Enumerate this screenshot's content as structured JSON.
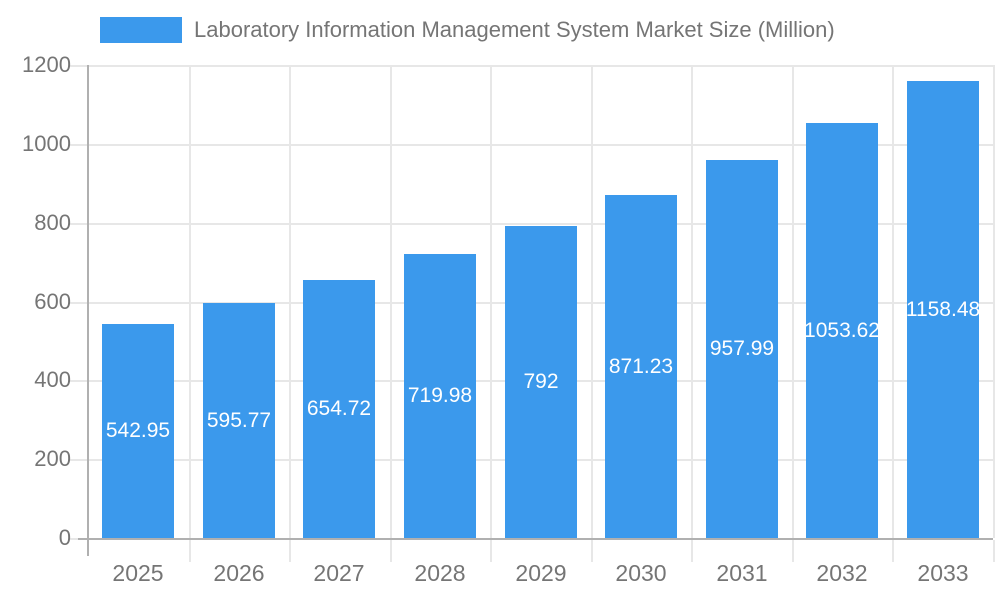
{
  "chart_data": {
    "type": "bar",
    "title": "Laboratory Information Management System Market Size (Million)",
    "legend_label": "Laboratory Information Management System Market Size (Million)",
    "legend_position": "top",
    "xlabel": "",
    "ylabel": "",
    "categories": [
      "2025",
      "2026",
      "2027",
      "2028",
      "2029",
      "2030",
      "2031",
      "2032",
      "2033"
    ],
    "values": [
      542.95,
      595.77,
      654.72,
      719.98,
      792,
      871.23,
      957.99,
      1053.62,
      1158.48
    ],
    "value_labels": [
      "542.95",
      "595.77",
      "654.72",
      "719.98",
      "792",
      "871.23",
      "957.99",
      "1053.62",
      "1158.48"
    ],
    "ylim": [
      0,
      1200
    ],
    "ytick_step": 200,
    "ytick_labels": [
      "0",
      "200",
      "400",
      "600",
      "800",
      "1000",
      "1200"
    ],
    "grid": true,
    "colors": {
      "bar": "#3b99ec",
      "gridline": "#e7e7e7",
      "axis_line": "#b0b0b0",
      "tick_text": "#757575",
      "legend_text": "#757575",
      "value_label_text": "#ffffff",
      "background": "#ffffff"
    }
  }
}
